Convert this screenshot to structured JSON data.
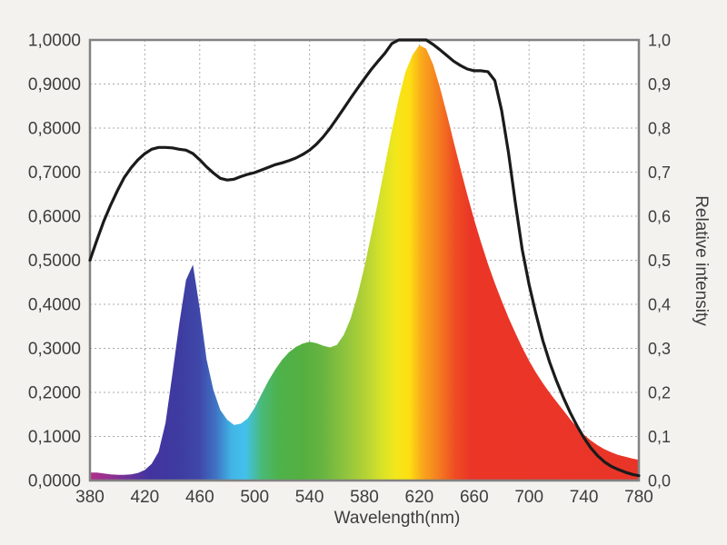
{
  "page": {
    "background": "#f4f2ef",
    "plot_background": "#ffffff",
    "frame_color": "#828282",
    "grid_color": "#a9a9a9",
    "text_color": "#3d3d3d"
  },
  "chart_data": {
    "type": "area",
    "title": "",
    "xlabel": "Wavelength(nm)",
    "ylabel_right": "Relative intensity",
    "xlim": [
      380,
      780
    ],
    "ylim": [
      0,
      1
    ],
    "grid": true,
    "legend": "none",
    "x_ticks": {
      "values": [
        380,
        420,
        460,
        500,
        540,
        580,
        620,
        660,
        700,
        740,
        780
      ],
      "labels": [
        "380",
        "420",
        "460",
        "500",
        "540",
        "580",
        "620",
        "660",
        "700",
        "740",
        "780"
      ]
    },
    "y_ticks_left": {
      "values": [
        0,
        0.1,
        0.2,
        0.3,
        0.4,
        0.5,
        0.6,
        0.7,
        0.8,
        0.9,
        1.0
      ],
      "labels": [
        "0,0000",
        "0,1000",
        "0,2000",
        "0,3000",
        "0,4000",
        "0,5000",
        "0,6000",
        "0,7000",
        "0,8000",
        "0,9000",
        "1,0000"
      ]
    },
    "y_ticks_right": {
      "values": [
        0,
        0.1,
        0.2,
        0.3,
        0.4,
        0.5,
        0.6,
        0.7,
        0.8,
        0.9,
        1.0
      ],
      "labels": [
        "0,0",
        "0,1",
        "0,2",
        "0,3",
        "0,4",
        "0,5",
        "0,6",
        "0,7",
        "0,8",
        "0,9",
        "1,0"
      ]
    },
    "series": [
      {
        "name": "led-emission-spectrum",
        "type": "area",
        "x_start": 380,
        "x_step": 5,
        "values": [
          0.018,
          0.018,
          0.016,
          0.014,
          0.013,
          0.013,
          0.014,
          0.017,
          0.024,
          0.038,
          0.065,
          0.13,
          0.24,
          0.355,
          0.455,
          0.49,
          0.39,
          0.275,
          0.205,
          0.16,
          0.138,
          0.126,
          0.129,
          0.141,
          0.165,
          0.196,
          0.226,
          0.252,
          0.274,
          0.291,
          0.303,
          0.311,
          0.315,
          0.312,
          0.306,
          0.302,
          0.308,
          0.331,
          0.368,
          0.42,
          0.485,
          0.558,
          0.635,
          0.715,
          0.795,
          0.868,
          0.928,
          0.966,
          0.988,
          0.98,
          0.945,
          0.893,
          0.833,
          0.77,
          0.708,
          0.648,
          0.592,
          0.54,
          0.492,
          0.448,
          0.408,
          0.37,
          0.335,
          0.302,
          0.272,
          0.245,
          0.221,
          0.199,
          0.179,
          0.159,
          0.139,
          0.12,
          0.104,
          0.091,
          0.08,
          0.071,
          0.064,
          0.058,
          0.054,
          0.05,
          0.047
        ],
        "fill": "wavelength-gradient",
        "gradient_stops": [
          [
            380,
            "#B03189"
          ],
          [
            395,
            "#933092"
          ],
          [
            410,
            "#63339A"
          ],
          [
            423,
            "#42349F"
          ],
          [
            445,
            "#3E3BA1"
          ],
          [
            460,
            "#3F48A9"
          ],
          [
            472,
            "#3F74C4"
          ],
          [
            483,
            "#41B4E5"
          ],
          [
            493,
            "#43C1EE"
          ],
          [
            505,
            "#48BA79"
          ],
          [
            517,
            "#4EB24B"
          ],
          [
            535,
            "#54AF40"
          ],
          [
            550,
            "#69B441"
          ],
          [
            565,
            "#8CC33E"
          ],
          [
            580,
            "#B2D135"
          ],
          [
            592,
            "#D6E229"
          ],
          [
            603,
            "#F2E71A"
          ],
          [
            613,
            "#FDDE13"
          ],
          [
            622,
            "#F9A81B"
          ],
          [
            634,
            "#F47D20"
          ],
          [
            646,
            "#EF4C23"
          ],
          [
            658,
            "#EA3527"
          ],
          [
            780,
            "#E93528"
          ]
        ]
      },
      {
        "name": "relative-response-curve",
        "type": "line",
        "color": "#1b1b1b",
        "width": 3.2,
        "x_start": 380,
        "x_step": 5,
        "values": [
          0.5,
          0.545,
          0.588,
          0.625,
          0.658,
          0.688,
          0.71,
          0.728,
          0.742,
          0.752,
          0.756,
          0.756,
          0.755,
          0.752,
          0.75,
          0.742,
          0.728,
          0.712,
          0.698,
          0.686,
          0.682,
          0.684,
          0.69,
          0.695,
          0.699,
          0.705,
          0.711,
          0.717,
          0.721,
          0.726,
          0.732,
          0.74,
          0.75,
          0.763,
          0.78,
          0.8,
          0.822,
          0.845,
          0.868,
          0.89,
          0.912,
          0.933,
          0.952,
          0.97,
          0.992,
          1.0,
          1.0,
          1.0,
          1.0,
          1.0,
          0.99,
          0.978,
          0.965,
          0.952,
          0.942,
          0.934,
          0.93,
          0.93,
          0.928,
          0.908,
          0.84,
          0.745,
          0.63,
          0.525,
          0.445,
          0.378,
          0.318,
          0.268,
          0.226,
          0.188,
          0.154,
          0.124,
          0.097,
          0.074,
          0.056,
          0.042,
          0.032,
          0.025,
          0.019,
          0.014,
          0.011
        ]
      }
    ]
  }
}
